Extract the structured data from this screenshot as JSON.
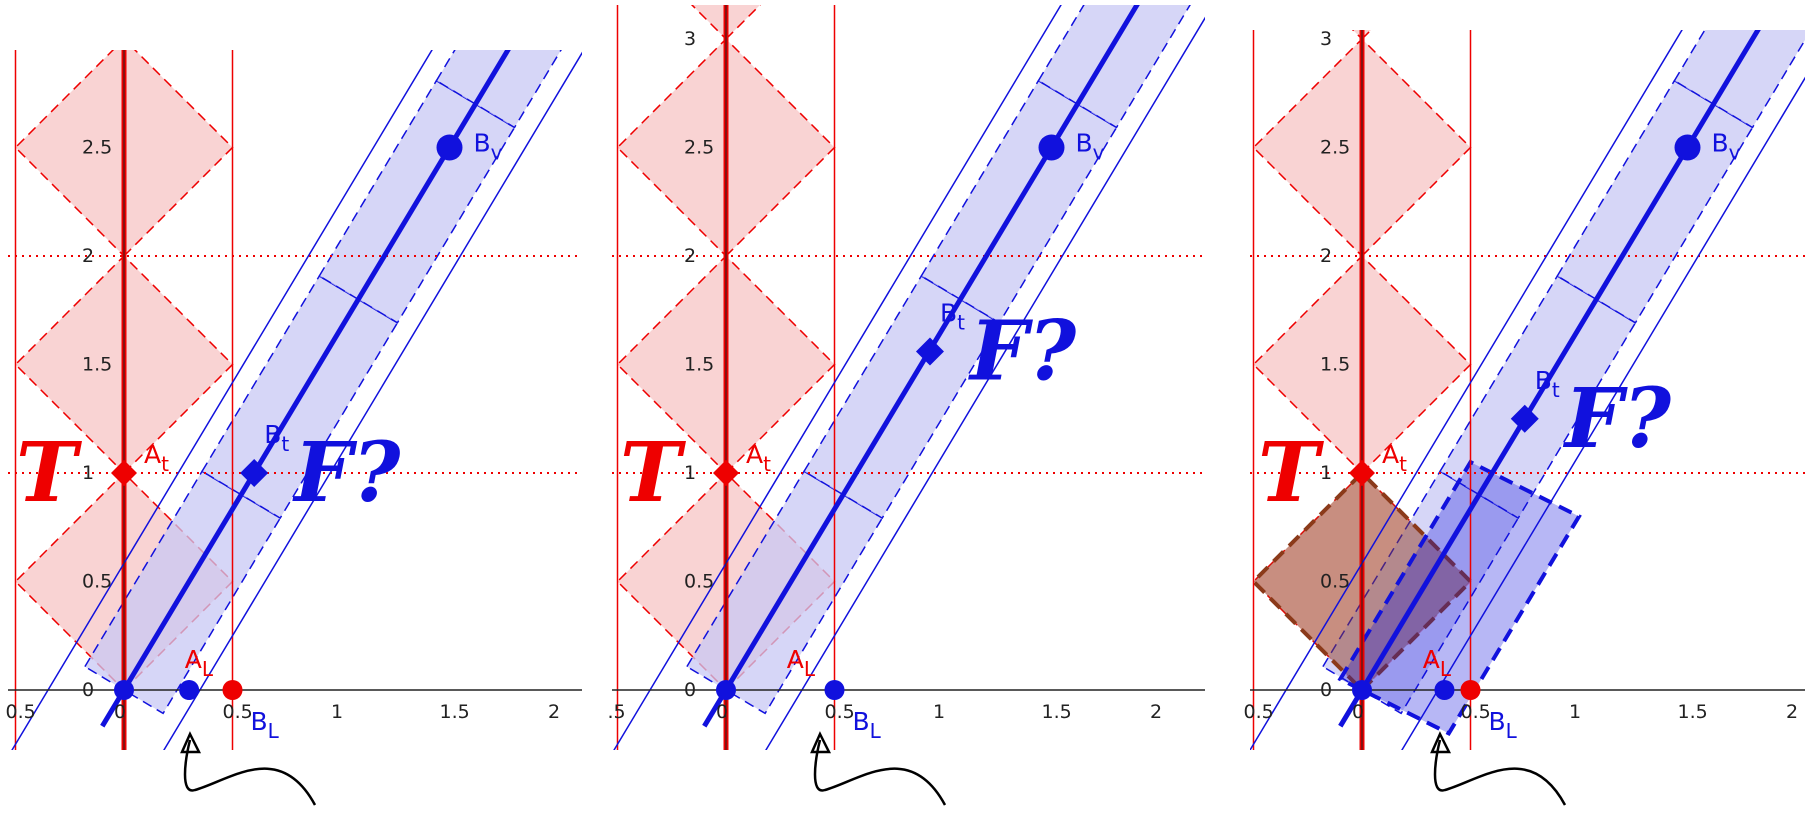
{
  "panels": [
    {
      "x_ticks": [
        "0.5",
        "0",
        "0.5",
        "1",
        "1.5",
        "2"
      ],
      "y_ticks": [
        "0",
        "0.5",
        "1",
        "1.5",
        "2",
        "2.5"
      ],
      "y_max": 2.8,
      "T_label": "T",
      "F_label": "F?",
      "A_t_label": "A",
      "A_t_sub": "t",
      "A_L_label": "A",
      "A_L_sub": "L",
      "B_t_label": "B",
      "B_t_sub": "t",
      "B_v_label": "B",
      "B_v_sub": "v",
      "B_L_label": "B",
      "B_L_sub": "L",
      "B_t_point": [
        0.6,
        1.0
      ],
      "B_v_point": [
        1.5,
        2.5
      ],
      "A_L_point": [
        0.3,
        0
      ],
      "B_L_point": [
        0.5,
        0
      ],
      "blue_slope": 1.667,
      "brown_diamond": false
    },
    {
      "x_ticks": [
        ".5",
        "0",
        "0.5",
        "1",
        "1.5",
        "2"
      ],
      "y_ticks": [
        "0",
        "0.5",
        "1",
        "1.5",
        "2",
        "2.5",
        "3"
      ],
      "y_max": 3.15,
      "T_label": "T",
      "F_label": "F?",
      "A_t_label": "A",
      "A_t_sub": "t",
      "A_L_label": "A",
      "A_L_sub": "L",
      "B_t_label": "B",
      "B_t_sub": "t",
      "B_v_label": "B",
      "B_v_sub": "v",
      "B_L_label": "B",
      "B_L_sub": "L",
      "B_t_point": [
        0.94,
        1.56
      ],
      "B_v_point": [
        1.5,
        2.5
      ],
      "A_L_point": null,
      "B_L_point": [
        0.5,
        0
      ],
      "blue_slope": 1.667,
      "brown_diamond": false
    },
    {
      "x_ticks": [
        "0.5",
        "0",
        "0.5",
        "1",
        "1.5",
        "2"
      ],
      "y_ticks": [
        "0",
        "0.5",
        "1",
        "1.5",
        "2",
        "2.5",
        "3"
      ],
      "y_max": 3.15,
      "T_label": "T",
      "F_label": "F?",
      "A_t_label": "A",
      "A_t_sub": "t",
      "A_L_label": "A",
      "A_L_sub": "L",
      "B_t_label": "B",
      "B_t_sub": "t",
      "B_v_label": "B",
      "B_v_sub": "v",
      "B_L_label": "B",
      "B_L_sub": "L",
      "B_t_point": [
        0.75,
        1.25
      ],
      "B_v_point": [
        1.5,
        2.5
      ],
      "A_L_point": [
        0.38,
        0
      ],
      "B_L_point": [
        0.5,
        0
      ],
      "blue_slope": 1.667,
      "brown_diamond": true
    }
  ],
  "colors": {
    "red": "#ee0000",
    "red_fill": "#f8c8c8",
    "blue": "#1111dd",
    "blue_fill": "#c8c8f4",
    "brown": "#8b3a1a"
  }
}
